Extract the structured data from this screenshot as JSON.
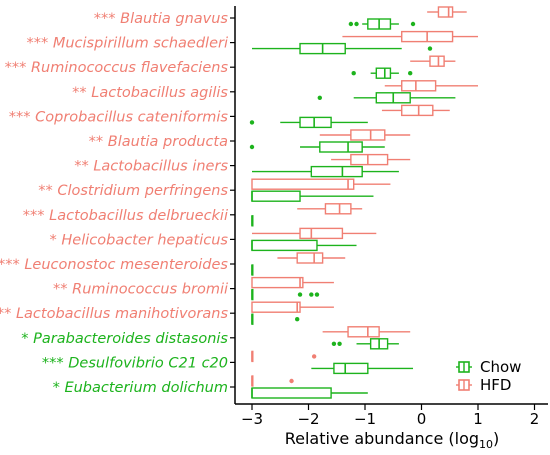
{
  "colors": {
    "Chow": "#1db31d",
    "HFD": "#f07f73",
    "axis": "#000000"
  },
  "chart_data": {
    "type": "boxplot",
    "orientation": "horizontal",
    "xlabel": "Relative abundance (log",
    "xlabel_sub": "10",
    "xlabel_close": ")",
    "xlim": [
      -3.2,
      2.2
    ],
    "xticks": [
      -3,
      -2,
      -1,
      0,
      1,
      2
    ],
    "xtick_labels": [
      "−3",
      "−2",
      "−1",
      "0",
      "1",
      "2"
    ],
    "legend": {
      "position": "bottom-right",
      "entries": [
        "Chow",
        "HFD"
      ]
    },
    "taxa": [
      {
        "sig": "***",
        "name": "Blautia gnavus",
        "enriched": "HFD",
        "HFD": {
          "q1": 0.3,
          "median": 0.48,
          "q3": 0.55,
          "wlo": 0.1,
          "whi": 0.8,
          "outliers": []
        },
        "Chow": {
          "q1": -0.95,
          "median": -0.75,
          "q3": -0.55,
          "wlo": -1.05,
          "whi": -0.4,
          "outliers": [
            -1.25,
            -1.15,
            -0.15
          ]
        }
      },
      {
        "sig": "***",
        "name": "Mucispirillum schaedleri",
        "enriched": "HFD",
        "HFD": {
          "q1": -0.35,
          "median": 0.1,
          "q3": 0.55,
          "wlo": -1.4,
          "whi": 1.0,
          "outliers": []
        },
        "Chow": {
          "q1": -2.15,
          "median": -1.75,
          "q3": -1.35,
          "wlo": -3.0,
          "whi": -0.35,
          "outliers": [
            0.15
          ]
        }
      },
      {
        "sig": "***",
        "name": "Ruminococcus flavefaciens",
        "enriched": "HFD",
        "HFD": {
          "q1": 0.15,
          "median": 0.3,
          "q3": 0.4,
          "wlo": -0.2,
          "whi": 0.6,
          "outliers": []
        },
        "Chow": {
          "q1": -0.8,
          "median": -0.65,
          "q3": -0.55,
          "wlo": -0.9,
          "whi": -0.4,
          "outliers": [
            -1.2,
            -0.2
          ]
        }
      },
      {
        "sig": "**",
        "name": "Lactobacillus agilis",
        "enriched": "HFD",
        "HFD": {
          "q1": -0.35,
          "median": -0.1,
          "q3": 0.25,
          "wlo": -0.65,
          "whi": 1.0,
          "outliers": []
        },
        "Chow": {
          "q1": -0.8,
          "median": -0.5,
          "q3": -0.2,
          "wlo": -1.2,
          "whi": 0.6,
          "outliers": [
            -1.8
          ]
        }
      },
      {
        "sig": "***",
        "name": "Coprobacillus cateniformis",
        "enriched": "HFD",
        "HFD": {
          "q1": -0.35,
          "median": -0.05,
          "q3": 0.2,
          "wlo": -0.7,
          "whi": 0.5,
          "outliers": []
        },
        "Chow": {
          "q1": -2.15,
          "median": -1.9,
          "q3": -1.6,
          "wlo": -2.5,
          "whi": -0.95,
          "outliers": [
            -3.0
          ]
        }
      },
      {
        "sig": "**",
        "name": "Blautia producta",
        "enriched": "HFD",
        "HFD": {
          "q1": -1.25,
          "median": -0.9,
          "q3": -0.65,
          "wlo": -1.8,
          "whi": -0.2,
          "outliers": []
        },
        "Chow": {
          "q1": -1.8,
          "median": -1.3,
          "q3": -1.05,
          "wlo": -2.15,
          "whi": -0.65,
          "outliers": [
            -3.0
          ]
        }
      },
      {
        "sig": "**",
        "name": "Lactobacillus iners",
        "enriched": "HFD",
        "HFD": {
          "q1": -1.25,
          "median": -0.95,
          "q3": -0.6,
          "wlo": -1.6,
          "whi": -0.2,
          "outliers": []
        },
        "Chow": {
          "q1": -1.95,
          "median": -1.4,
          "q3": -1.05,
          "wlo": -3.0,
          "whi": -0.4,
          "outliers": []
        }
      },
      {
        "sig": "**",
        "name": "Clostridium perfringens",
        "enriched": "HFD",
        "HFD": {
          "q1": -3.0,
          "median": -1.3,
          "q3": -1.2,
          "wlo": -3.0,
          "whi": -0.55,
          "outliers": []
        },
        "Chow": {
          "q1": -3.0,
          "median": -3.0,
          "q3": -2.15,
          "wlo": -3.0,
          "whi": -0.85,
          "outliers": []
        }
      },
      {
        "sig": "***",
        "name": "Lactobacillus delbrueckii",
        "enriched": "HFD",
        "HFD": {
          "q1": -1.7,
          "median": -1.45,
          "q3": -1.25,
          "wlo": -2.2,
          "whi": -1.05,
          "outliers": []
        },
        "Chow": {
          "q1": -3.0,
          "median": -3.0,
          "q3": -3.0,
          "wlo": -3.0,
          "whi": -3.0,
          "outliers": []
        }
      },
      {
        "sig": "*",
        "name": "Helicobacter hepaticus",
        "enriched": "HFD",
        "HFD": {
          "q1": -2.15,
          "median": -1.95,
          "q3": -1.4,
          "wlo": -3.0,
          "whi": -0.8,
          "outliers": []
        },
        "Chow": {
          "q1": -3.0,
          "median": -3.0,
          "q3": -1.85,
          "wlo": -3.0,
          "whi": -1.15,
          "outliers": []
        }
      },
      {
        "sig": "***",
        "name": "Leuconostoc mesenteroides",
        "enriched": "HFD",
        "HFD": {
          "q1": -2.2,
          "median": -1.9,
          "q3": -1.75,
          "wlo": -2.55,
          "whi": -1.35,
          "outliers": []
        },
        "Chow": {
          "q1": -3.0,
          "median": -3.0,
          "q3": -3.0,
          "wlo": -3.0,
          "whi": -3.0,
          "outliers": []
        }
      },
      {
        "sig": "**",
        "name": "Ruminococcus bromii",
        "enriched": "HFD",
        "HFD": {
          "q1": -3.0,
          "median": -2.15,
          "q3": -2.1,
          "wlo": -3.0,
          "whi": -1.55,
          "outliers": []
        },
        "Chow": {
          "q1": -3.0,
          "median": -3.0,
          "q3": -3.0,
          "wlo": -3.0,
          "whi": -3.0,
          "outliers": [
            -2.15,
            -1.95,
            -1.85
          ]
        }
      },
      {
        "sig": "**",
        "name": "Lactobacillus manihotivorans",
        "enriched": "HFD",
        "HFD": {
          "q1": -3.0,
          "median": -2.2,
          "q3": -2.15,
          "wlo": -3.0,
          "whi": -1.55,
          "outliers": []
        },
        "Chow": {
          "q1": -3.0,
          "median": -3.0,
          "q3": -3.0,
          "wlo": -3.0,
          "whi": -3.0,
          "outliers": [
            -2.2
          ]
        }
      },
      {
        "sig": "*",
        "name": "Parabacteroides distasonis",
        "enriched": "Chow",
        "HFD": {
          "q1": -1.3,
          "median": -0.95,
          "q3": -0.75,
          "wlo": -1.75,
          "whi": -0.2,
          "outliers": []
        },
        "Chow": {
          "q1": -0.9,
          "median": -0.75,
          "q3": -0.6,
          "wlo": -1.15,
          "whi": -0.4,
          "outliers": [
            -1.55,
            -1.45
          ]
        }
      },
      {
        "sig": "***",
        "name": "Desulfovibrio C21 c20",
        "enriched": "Chow",
        "HFD": {
          "q1": -3.0,
          "median": -3.0,
          "q3": -3.0,
          "wlo": -3.0,
          "whi": -3.0,
          "outliers": [
            -1.9
          ]
        },
        "Chow": {
          "q1": -1.55,
          "median": -1.35,
          "q3": -0.95,
          "wlo": -1.95,
          "whi": -0.15,
          "outliers": []
        }
      },
      {
        "sig": "*",
        "name": "Eubacterium dolichum",
        "enriched": "Chow",
        "HFD": {
          "q1": -3.0,
          "median": -3.0,
          "q3": -3.0,
          "wlo": -3.0,
          "whi": -3.0,
          "outliers": [
            -2.3
          ]
        },
        "Chow": {
          "q1": -3.0,
          "median": -3.0,
          "q3": -1.6,
          "wlo": -3.0,
          "whi": -0.95,
          "outliers": []
        }
      }
    ]
  }
}
